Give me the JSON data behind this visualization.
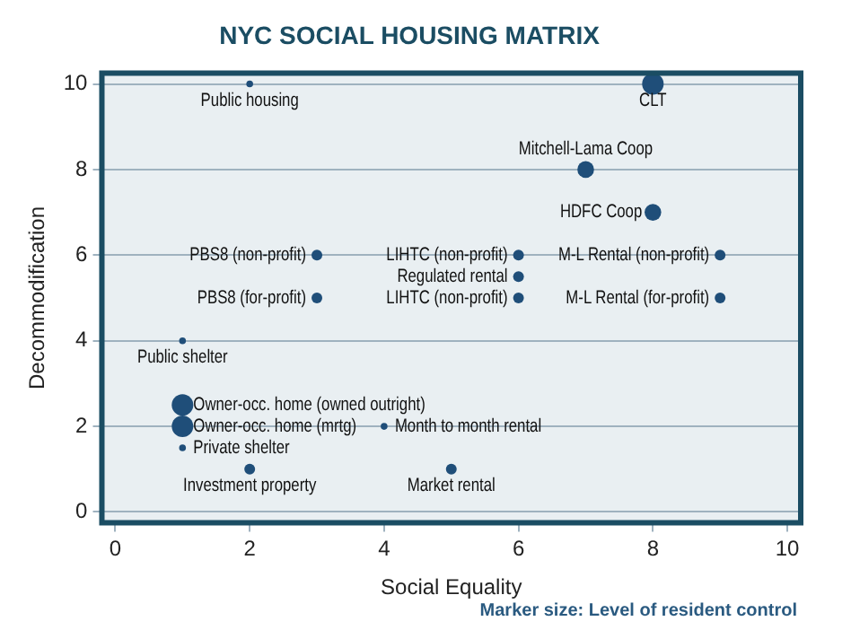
{
  "chart_data": {
    "type": "bubble",
    "title": "NYC SOCIAL HOUSING MATRIX",
    "xlabel": "Social Equality",
    "ylabel": "Decommodification",
    "xlim": [
      -0.2,
      10.2
    ],
    "ylim": [
      -0.25,
      10.25
    ],
    "xticks": [
      0,
      2,
      4,
      6,
      8,
      10
    ],
    "yticks": [
      0,
      2,
      4,
      6,
      8,
      10
    ],
    "grid": "y",
    "legend": false,
    "series": [
      {
        "color": "#1f4e79",
        "x": [
          2,
          8,
          7,
          8,
          3,
          6,
          9,
          6,
          3,
          6,
          9,
          1,
          1,
          1,
          4,
          1,
          2,
          5
        ],
        "values": [
          10,
          10,
          8,
          7,
          6,
          6,
          6,
          5.5,
          5,
          5,
          5,
          4,
          2.5,
          2,
          2,
          1.5,
          1,
          1
        ],
        "sizes": [
          0.1,
          1,
          0.6,
          0.6,
          0.25,
          0.25,
          0.25,
          0.25,
          0.25,
          0.25,
          0.25,
          0.1,
          1,
          1,
          0.1,
          0.1,
          0.25,
          0.25
        ]
      }
    ],
    "annotations": [
      {
        "text": "Public housing",
        "x": 2,
        "y": 10
      },
      {
        "text": "CLT",
        "x": 8,
        "y": 10
      },
      {
        "text": "Mitchell-Lama Coop",
        "x": 7,
        "y": 8
      },
      {
        "text": "HDFC Coop",
        "x": 8,
        "y": 7
      },
      {
        "text": "PBS8 (non-profit)",
        "x": 3,
        "y": 6
      },
      {
        "text": "LIHTC (non-profit)",
        "x": 6,
        "y": 6
      },
      {
        "text": "M-L Rental (non-profit)",
        "x": 9,
        "y": 6
      },
      {
        "text": "Regulated rental",
        "x": 6,
        "y": 5.5
      },
      {
        "text": "PBS8 (for-profit)",
        "x": 3,
        "y": 5
      },
      {
        "text": "LIHTC (non-profit)",
        "x": 6,
        "y": 5
      },
      {
        "text": "M-L Rental (for-profit)",
        "x": 9,
        "y": 5
      },
      {
        "text": "Public shelter",
        "x": 1,
        "y": 4
      },
      {
        "text": "Owner-occ. home (owned outright)",
        "x": 1,
        "y": 2.5
      },
      {
        "text": "Owner-occ. home (mrtg)",
        "x": 1,
        "y": 2
      },
      {
        "text": "Month to month rental",
        "x": 4,
        "y": 2
      },
      {
        "text": "Private shelter",
        "x": 1,
        "y": 1.5
      },
      {
        "text": "Investment property",
        "x": 2,
        "y": 1
      },
      {
        "text": "Market rental",
        "x": 5,
        "y": 1
      },
      "Marker size: Level of resident control"
    ]
  }
}
